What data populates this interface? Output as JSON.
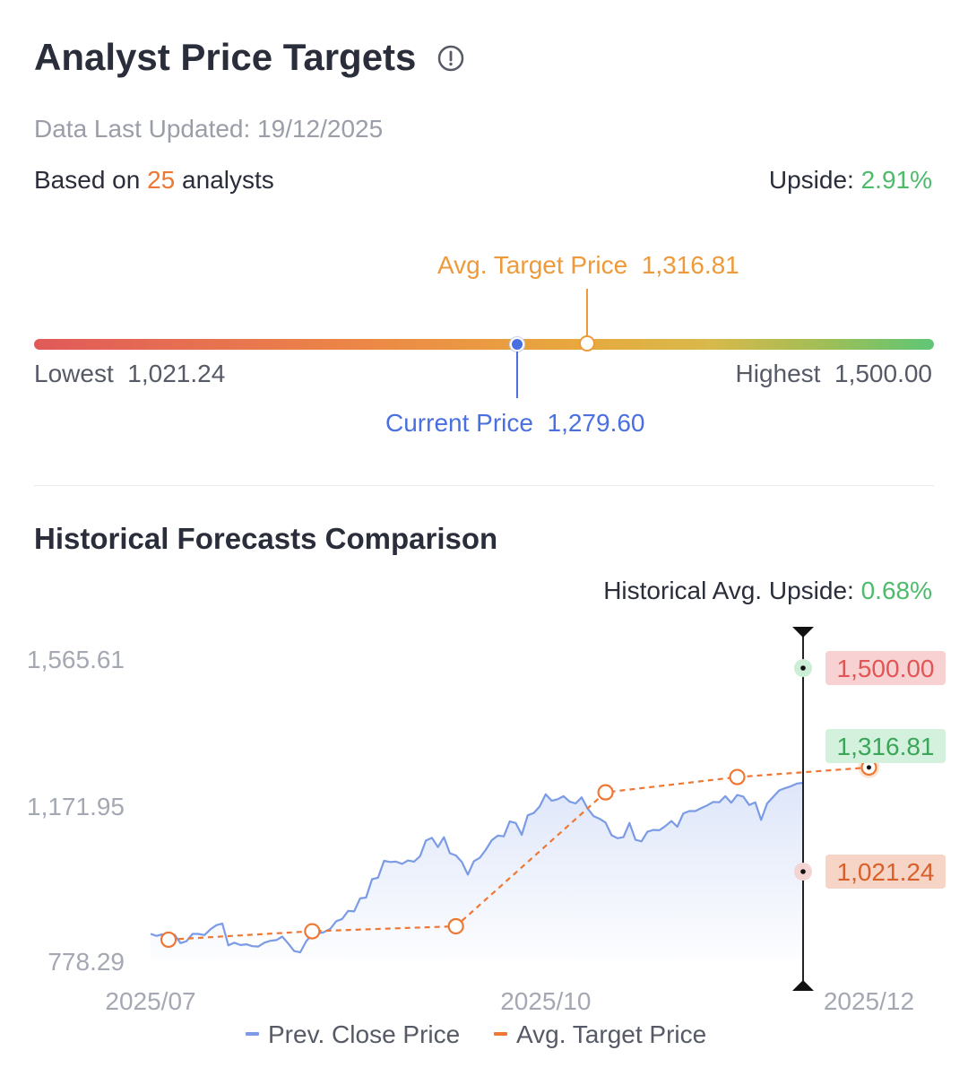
{
  "header": {
    "title": "Analyst Price Targets",
    "updated_label": "Data Last Updated: ",
    "updated_date": "19/12/2025",
    "based_prefix": "Based on ",
    "analyst_count": "25",
    "based_suffix": " analysts",
    "upside_label": "Upside: ",
    "upside_value": "2.91%"
  },
  "range": {
    "avg_label": "Avg. Target Price",
    "avg_value": "1,316.81",
    "current_label": "Current Price",
    "current_value": "1,279.60",
    "lowest_label": "Lowest",
    "lowest_value": "1,021.24",
    "highest_label": "Highest",
    "highest_value": "1,500.00",
    "current_position": 0.537,
    "avg_position": 0.615
  },
  "history": {
    "title": "Historical Forecasts Comparison",
    "upside_label": "Historical Avg. Upside: ",
    "upside_value": "0.68%"
  },
  "colors": {
    "price_line": "#7b9be6",
    "target_line": "#ee7733",
    "high_tag_bg": "#f8d2d2",
    "high_tag_fg": "#e05555",
    "avg_tag_bg": "#d3f1dc",
    "avg_tag_fg": "#3aa65a",
    "low_tag_bg": "#f6d4c6",
    "low_tag_fg": "#d9602a"
  },
  "chart_data": {
    "type": "line",
    "y_ticks": [
      "1,565.61",
      "1,171.95",
      "778.29"
    ],
    "ylim": [
      778.29,
      1565.61
    ],
    "x_ticks": [
      {
        "label": "2025/07",
        "index": 0
      },
      {
        "label": "2025/10",
        "index": 66
      },
      {
        "label": "2025/12",
        "index": 120
      }
    ],
    "legend": [
      "Prev. Close Price",
      "Avg. Target Price"
    ],
    "series": [
      {
        "name": "Prev. Close Price",
        "values": [
          845,
          840,
          844,
          820,
          843,
          821,
          826,
          845,
          845,
          842,
          857,
          868,
          872,
          815,
          822,
          816,
          818,
          813,
          812,
          822,
          827,
          829,
          838,
          820,
          800,
          797,
          826,
          844,
          846,
          850,
          858,
          878,
          884,
          905,
          904,
          938,
          940,
          988,
          992,
          1036,
          1033,
          1034,
          1028,
          1037,
          1034,
          1048,
          1089,
          1096,
          1072,
          1098,
          1056,
          1050,
          1033,
          1000,
          1035,
          1044,
          1065,
          1090,
          1102,
          1100,
          1139,
          1135,
          1104,
          1155,
          1161,
          1178,
          1210,
          1193,
          1197,
          1205,
          1191,
          1186,
          1202,
          1173,
          1153,
          1146,
          1136,
          1103,
          1095,
          1098,
          1135,
          1091,
          1087,
          1112,
          1117,
          1116,
          1127,
          1140,
          1125,
          1160,
          1166,
          1166,
          1174,
          1181,
          1190,
          1189,
          1205,
          1188,
          1208,
          1204,
          1182,
          1189,
          1143,
          1186,
          1203,
          1220,
          1226,
          1231,
          1238,
          1240
        ]
      },
      {
        "name": "Avg. Target Price",
        "points": [
          [
            3,
            830
          ],
          [
            27,
            852
          ],
          [
            51,
            865
          ],
          [
            76,
            1215
          ],
          [
            98,
            1255
          ],
          [
            120,
            1280
          ]
        ]
      }
    ],
    "end_markers": [
      {
        "label": "1,500.00",
        "value": 1500.0
      },
      {
        "label": "1,316.81",
        "value": 1316.81
      },
      {
        "label": "1,021.24",
        "value": 1021.24
      }
    ]
  }
}
